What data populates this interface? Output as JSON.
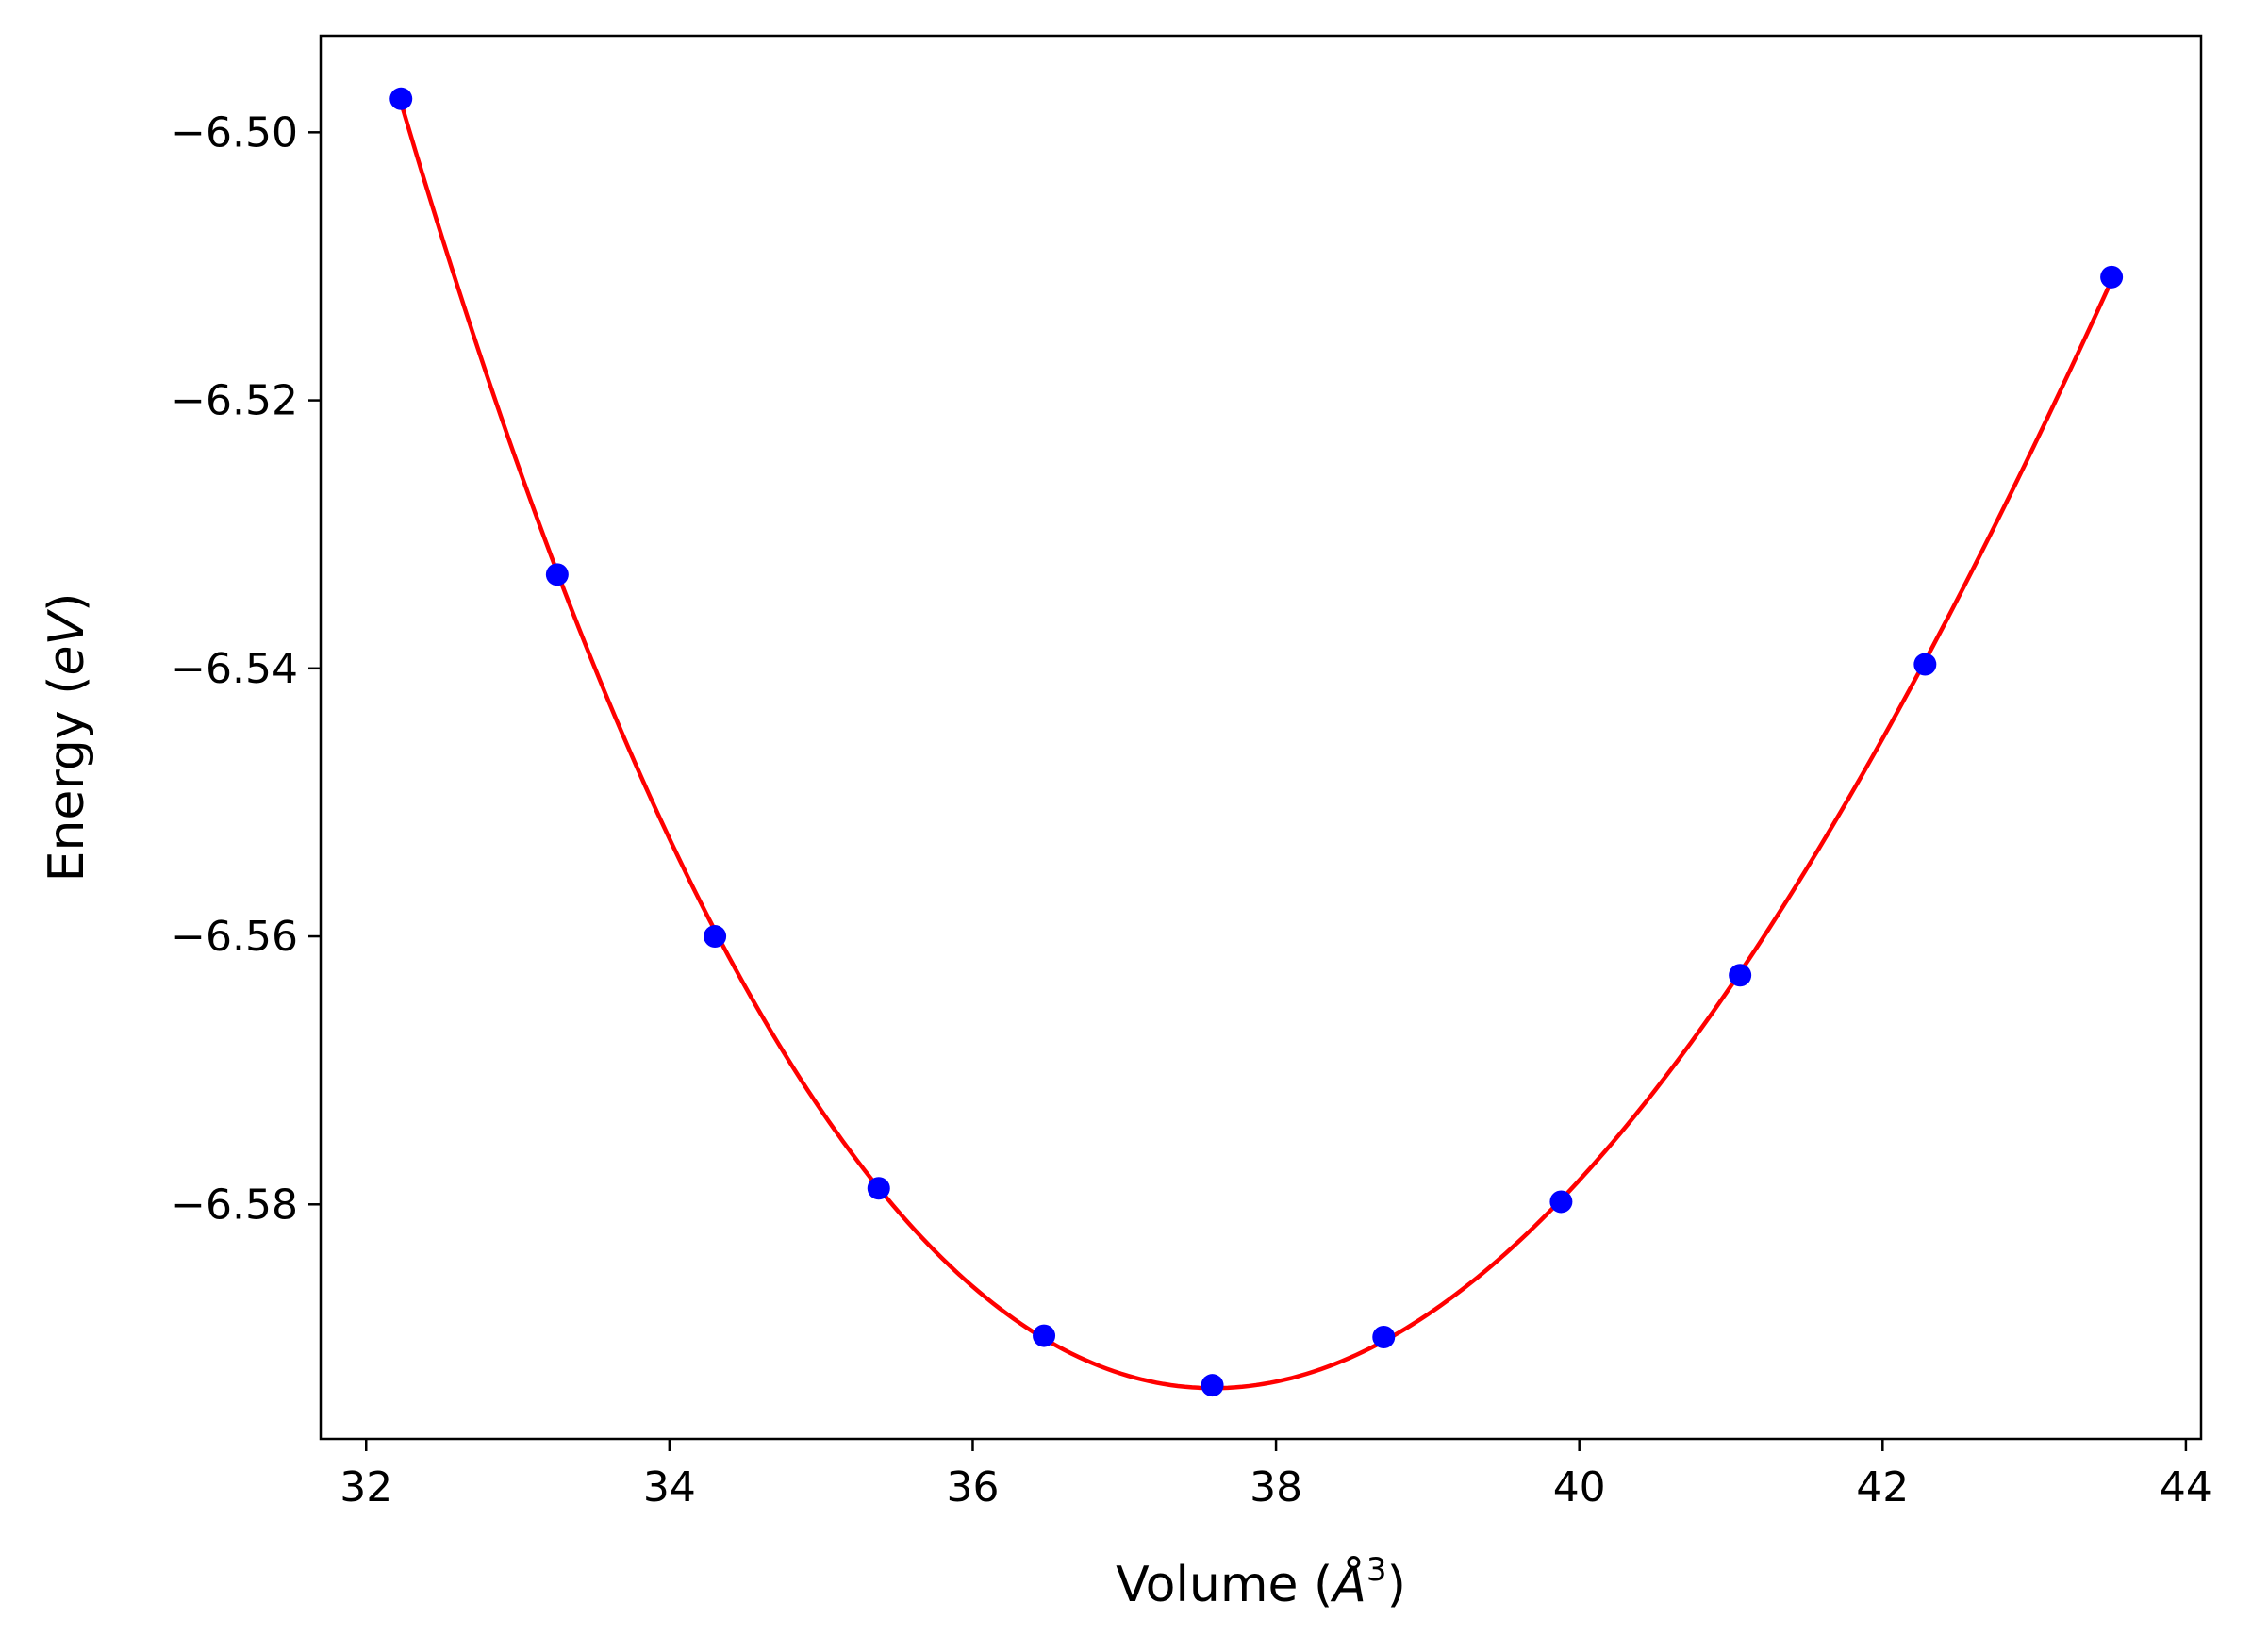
{
  "chart_data": {
    "type": "scatter",
    "title": "",
    "xlabel": "Volume (",
    "xlabel_symbol": "Å",
    "xlabel_power": "3",
    "xlabel_close": ")",
    "ylabel": "Energy (",
    "ylabel_unit": "eV",
    "ylabel_close": ")",
    "xlim": [
      31.7,
      44.1
    ],
    "ylim": [
      -6.5975,
      -6.4928
    ],
    "xticks": [
      32,
      34,
      36,
      38,
      40,
      42,
      44
    ],
    "yticks": [
      -6.5,
      -6.52,
      -6.54,
      -6.56,
      -6.58
    ],
    "xtick_labels": [
      "32",
      "34",
      "36",
      "38",
      "40",
      "42",
      "44"
    ],
    "ytick_labels": [
      "−6.50",
      "−6.52",
      "−6.54",
      "−6.56",
      "−6.58"
    ],
    "grid": false,
    "series": [
      {
        "kind": "points",
        "color": "#0000ff",
        "x": [
          32.23,
          33.26,
          34.3,
          35.38,
          36.47,
          37.58,
          38.71,
          39.88,
          41.06,
          42.28,
          43.51
        ],
        "y": [
          -6.4975,
          -6.533,
          -6.56,
          -6.5788,
          -6.5898,
          -6.5935,
          -6.5899,
          -6.5798,
          -6.5629,
          -6.5397,
          -6.5108
        ]
      },
      {
        "kind": "fit-curve",
        "color": "#ff0000",
        "x_range": [
          32.23,
          43.51
        ]
      }
    ]
  }
}
